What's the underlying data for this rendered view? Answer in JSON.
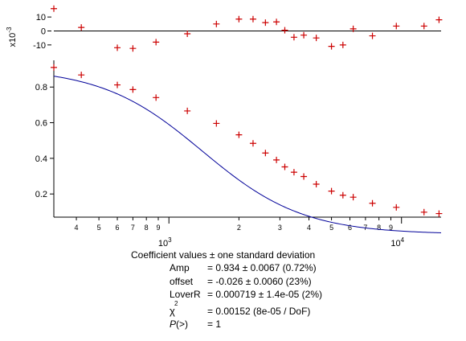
{
  "chart_data": {
    "type": "scatter",
    "x_scale": "log",
    "xlim": [
      320,
      14800
    ],
    "x_major_ticks": [
      {
        "value": 1000,
        "base": "10",
        "exp": "3"
      },
      {
        "value": 10000,
        "base": "10",
        "exp": "4"
      }
    ],
    "x_minor_ticks": [
      {
        "value": 400,
        "label": "4"
      },
      {
        "value": 500,
        "label": "5"
      },
      {
        "value": 600,
        "label": "6"
      },
      {
        "value": 700,
        "label": "7"
      },
      {
        "value": 800,
        "label": "8"
      },
      {
        "value": 900,
        "label": "9"
      },
      {
        "value": 2000,
        "label": "2"
      },
      {
        "value": 3000,
        "label": "3"
      },
      {
        "value": 4000,
        "label": "4"
      },
      {
        "value": 5000,
        "label": "5"
      },
      {
        "value": 6000,
        "label": "6"
      },
      {
        "value": 7000,
        "label": "7"
      },
      {
        "value": 8000,
        "label": "8"
      },
      {
        "value": 9000,
        "label": "9"
      }
    ],
    "main": {
      "ylim": [
        0.07,
        0.95
      ],
      "yticks": [
        0.2,
        0.4,
        0.6,
        0.8
      ],
      "ytick_labels": [
        "0.2",
        "0.4",
        "0.6",
        "0.8"
      ],
      "data": {
        "x": [
          320,
          420,
          600,
          700,
          880,
          1200,
          1600,
          2000,
          2300,
          2600,
          2900,
          3150,
          3450,
          3800,
          4300,
          5000,
          5600,
          6200,
          7500,
          9500,
          12500,
          14500
        ],
        "y": [
          0.91,
          0.868,
          0.812,
          0.786,
          0.741,
          0.666,
          0.596,
          0.532,
          0.484,
          0.43,
          0.391,
          0.352,
          0.322,
          0.298,
          0.255,
          0.216,
          0.193,
          0.182,
          0.148,
          0.125,
          0.098,
          0.09
        ]
      },
      "fit": {
        "Amp": 0.934,
        "offset": -0.026,
        "LoverR": 0.000719
      }
    },
    "residuals": {
      "ylim": [
        -17,
        17
      ],
      "yticks": [
        -10,
        0,
        10
      ],
      "ytick_labels": [
        "-10",
        "0",
        "10"
      ],
      "multiplier_base": "x10",
      "multiplier_exp": "-3",
      "x": [
        320,
        420,
        600,
        700,
        880,
        1200,
        1600,
        2000,
        2300,
        2600,
        2900,
        3150,
        3450,
        3800,
        4300,
        5000,
        5600,
        6200,
        7500,
        9500,
        12500,
        14500
      ],
      "y": [
        16,
        2.5,
        -12,
        -12.5,
        -8,
        -2,
        5,
        8.5,
        8.5,
        6,
        6.5,
        0.5,
        -4.5,
        -3,
        -5,
        -11,
        -10,
        1.5,
        -3.5,
        3.5,
        3.5,
        8
      ]
    },
    "colors": {
      "data_marker": "#cc0000",
      "fit_line": "#000099",
      "axis": "#000000"
    }
  },
  "coefficients": {
    "title": "Coefficient values ± one standard deviation",
    "rows": [
      {
        "name": "Amp",
        "value": "= 0.934 ± 0.0067  (0.72%)"
      },
      {
        "name": "offset",
        "value": "= -0.026 ± 0.0060  (23%)"
      },
      {
        "name": "LoverR",
        "value": "= 0.000719 ± 1.4e-05  (2%)"
      }
    ],
    "chi_symbol": "χ",
    "chi_exp": "2",
    "chi_value": "= 0.00152 (8e-05 / DoF)",
    "p_symbol": "P",
    "p_suffix": "(>)",
    "p_value": "= 1"
  }
}
